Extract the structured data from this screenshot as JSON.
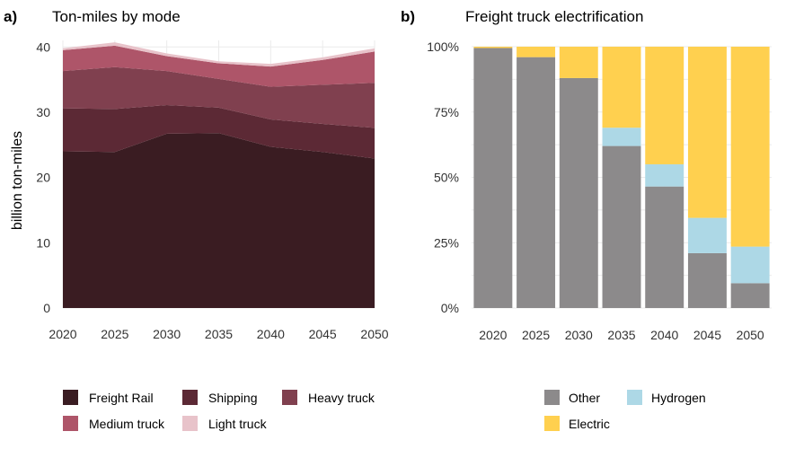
{
  "chart_data": [
    {
      "type": "area",
      "panel_label": "a)",
      "title": "Ton-miles by mode",
      "xlabel": "",
      "ylabel": "billion ton-miles",
      "x": [
        2020,
        2025,
        2030,
        2035,
        2040,
        2045,
        2050
      ],
      "ylim": [
        0,
        41
      ],
      "yticks": [
        0,
        10,
        20,
        30,
        40
      ],
      "stacked": true,
      "grid": true,
      "legend_position": "bottom",
      "series": [
        {
          "name": "Freight Rail",
          "color": "#3a1c22",
          "values": [
            24.0,
            23.9,
            26.7,
            26.8,
            24.7,
            23.9,
            22.9
          ]
        },
        {
          "name": "Shipping",
          "color": "#5c2935",
          "values": [
            6.6,
            6.6,
            4.4,
            3.9,
            4.2,
            4.3,
            4.7
          ]
        },
        {
          "name": "Heavy truck",
          "color": "#80404f",
          "values": [
            5.7,
            6.4,
            5.2,
            4.4,
            5.0,
            6.0,
            6.9
          ]
        },
        {
          "name": "Medium truck",
          "color": "#ae5569",
          "values": [
            3.2,
            3.3,
            2.3,
            2.4,
            3.1,
            3.8,
            4.8
          ]
        },
        {
          "name": "Light truck",
          "color": "#e8c3ca",
          "values": [
            0.3,
            0.5,
            0.4,
            0.3,
            0.4,
            0.4,
            0.5
          ]
        }
      ]
    },
    {
      "type": "bar",
      "panel_label": "b)",
      "title": "Freight truck electrification",
      "xlabel": "",
      "ylabel": "",
      "categories": [
        "2020",
        "2025",
        "2030",
        "2035",
        "2040",
        "2045",
        "2050"
      ],
      "ylim": [
        0,
        100
      ],
      "yticks": [
        "0%",
        "25%",
        "50%",
        "75%",
        "100%"
      ],
      "stacked": true,
      "grid": true,
      "legend_position": "bottom",
      "series": [
        {
          "name": "Other",
          "color": "#8c8a8b",
          "values": [
            99.5,
            96,
            88,
            62,
            46.5,
            21,
            9.5
          ]
        },
        {
          "name": "Hydrogen",
          "color": "#add8e6",
          "values": [
            0,
            0,
            0,
            7,
            8.5,
            13.5,
            14
          ]
        },
        {
          "name": "Electric",
          "color": "#ffd04f",
          "values": [
            0.5,
            4,
            12,
            31,
            45,
            65.5,
            76.5
          ]
        }
      ]
    }
  ]
}
